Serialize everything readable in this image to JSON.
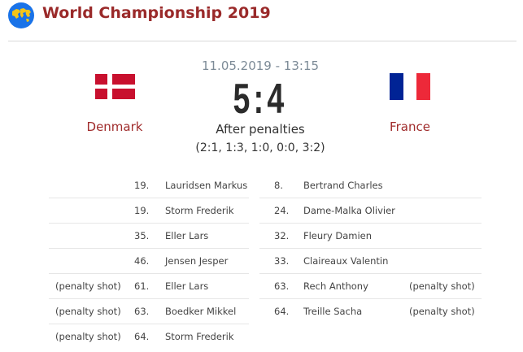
{
  "header": {
    "title": "World Championship 2019",
    "icon": "globe-map-icon"
  },
  "match": {
    "datetime": "11.05.2019 - 13:15",
    "score": "5:4",
    "result_note": "After penalties",
    "periods": "(2:1, 1:3, 1:0, 0:0, 3:2)",
    "home": {
      "name": "Denmark",
      "flag": "denmark-flag",
      "colors": [
        "#c8102e",
        "#ffffff"
      ]
    },
    "away": {
      "name": "France",
      "flag": "france-flag",
      "colors": [
        "#002395",
        "#ffffff",
        "#ed2939"
      ]
    }
  },
  "goals": {
    "home": [
      {
        "note": "",
        "minute": "19.",
        "player": "Lauridsen Markus"
      },
      {
        "note": "",
        "minute": "19.",
        "player": "Storm Frederik"
      },
      {
        "note": "",
        "minute": "35.",
        "player": "Eller Lars"
      },
      {
        "note": "",
        "minute": "46.",
        "player": "Jensen Jesper"
      },
      {
        "note": "(penalty shot)",
        "minute": "61.",
        "player": "Eller Lars"
      },
      {
        "note": "(penalty shot)",
        "minute": "63.",
        "player": "Boedker Mikkel"
      },
      {
        "note": "(penalty shot)",
        "minute": "64.",
        "player": "Storm Frederik"
      }
    ],
    "away": [
      {
        "minute": "8.",
        "player": "Bertrand Charles",
        "note": ""
      },
      {
        "minute": "24.",
        "player": "Dame-Malka Olivier",
        "note": ""
      },
      {
        "minute": "32.",
        "player": "Fleury Damien",
        "note": ""
      },
      {
        "minute": "33.",
        "player": "Claireaux Valentin",
        "note": ""
      },
      {
        "minute": "63.",
        "player": "Rech Anthony",
        "note": "(penalty shot)"
      },
      {
        "minute": "64.",
        "player": "Treille Sacha",
        "note": "(penalty shot)"
      }
    ]
  }
}
